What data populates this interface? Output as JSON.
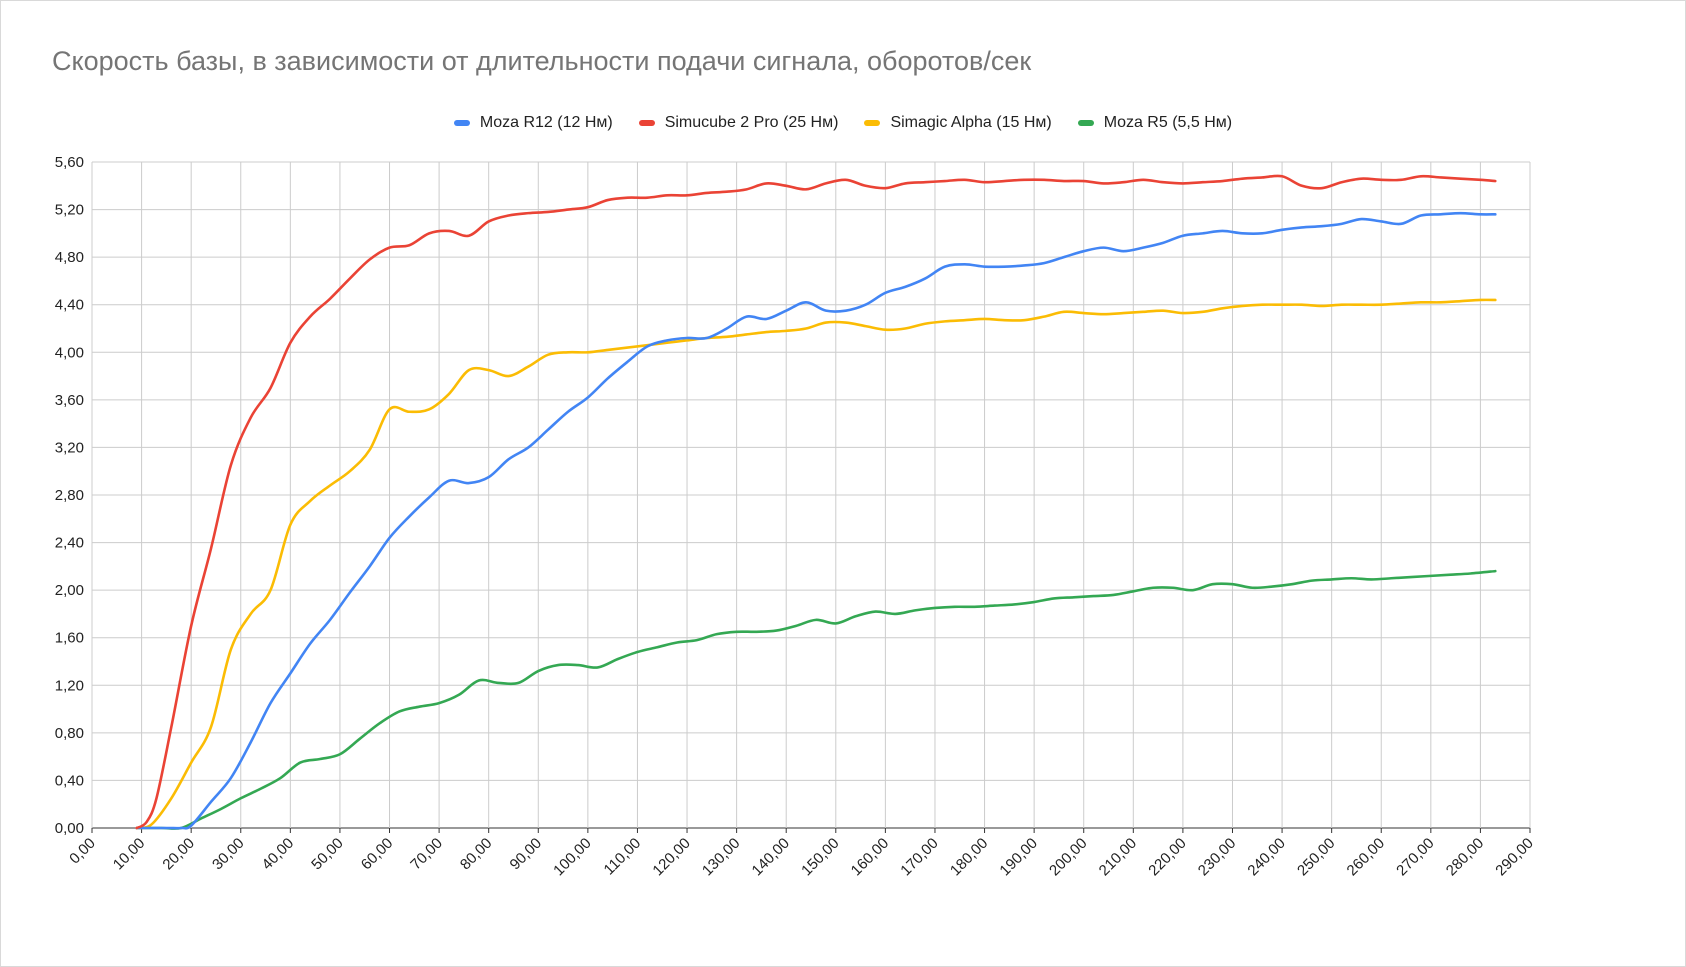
{
  "chart_data": {
    "type": "line",
    "title": "Скорость базы, в зависимости от длительности подачи сигнала, оборотов/сек",
    "xlabel": "",
    "ylabel": "",
    "xlim": [
      0,
      290
    ],
    "ylim": [
      0,
      5.6
    ],
    "x_ticks": [
      0,
      10,
      20,
      30,
      40,
      50,
      60,
      70,
      80,
      90,
      100,
      110,
      120,
      130,
      140,
      150,
      160,
      170,
      180,
      190,
      200,
      210,
      220,
      230,
      240,
      250,
      260,
      270,
      280,
      290
    ],
    "x_tick_labels": [
      "0,00",
      "10,00",
      "20,00",
      "30,00",
      "40,00",
      "50,00",
      "60,00",
      "70,00",
      "80,00",
      "90,00",
      "100,00",
      "110,00",
      "120,00",
      "130,00",
      "140,00",
      "150,00",
      "160,00",
      "170,00",
      "180,00",
      "190,00",
      "200,00",
      "210,00",
      "220,00",
      "230,00",
      "240,00",
      "250,00",
      "260,00",
      "270,00",
      "280,00",
      "290,00"
    ],
    "y_ticks": [
      0,
      0.4,
      0.8,
      1.2,
      1.6,
      2.0,
      2.4,
      2.8,
      3.2,
      3.6,
      4.0,
      4.4,
      4.8,
      5.2,
      5.6
    ],
    "y_tick_labels": [
      "0,00",
      "0,40",
      "0,80",
      "1,20",
      "1,60",
      "2,00",
      "2,40",
      "2,80",
      "3,20",
      "3,60",
      "4,00",
      "4,40",
      "4,80",
      "5,20",
      "5,60"
    ],
    "grid": true,
    "legend_position": "top",
    "series": [
      {
        "name": "Moza R12 (12 Нм)",
        "color": "#4285f4",
        "x": [
          9,
          15,
          18,
          20,
          24,
          28,
          32,
          36,
          40,
          44,
          48,
          52,
          56,
          60,
          64,
          68,
          72,
          76,
          80,
          84,
          88,
          92,
          96,
          100,
          104,
          108,
          112,
          116,
          120,
          124,
          128,
          132,
          136,
          140,
          144,
          148,
          152,
          156,
          160,
          164,
          168,
          172,
          176,
          180,
          184,
          188,
          192,
          196,
          200,
          204,
          208,
          212,
          216,
          220,
          224,
          228,
          232,
          236,
          240,
          244,
          248,
          252,
          256,
          260,
          264,
          268,
          272,
          276,
          280,
          283
        ],
        "values": [
          0,
          0,
          0,
          0.02,
          0.22,
          0.42,
          0.72,
          1.05,
          1.3,
          1.55,
          1.75,
          1.98,
          2.2,
          2.44,
          2.62,
          2.78,
          2.92,
          2.9,
          2.95,
          3.1,
          3.2,
          3.35,
          3.5,
          3.62,
          3.78,
          3.92,
          4.05,
          4.1,
          4.12,
          4.12,
          4.2,
          4.3,
          4.28,
          4.35,
          4.42,
          4.35,
          4.35,
          4.4,
          4.5,
          4.55,
          4.62,
          4.72,
          4.74,
          4.72,
          4.72,
          4.73,
          4.75,
          4.8,
          4.85,
          4.88,
          4.85,
          4.88,
          4.92,
          4.98,
          5.0,
          5.02,
          5.0,
          5.0,
          5.03,
          5.05,
          5.06,
          5.08,
          5.12,
          5.1,
          5.08,
          5.15,
          5.16,
          5.17,
          5.16,
          5.16
        ]
      },
      {
        "name": "Simucube 2 Pro (25 Нм)",
        "color": "#ea4335",
        "x": [
          9,
          11,
          13,
          16,
          20,
          24,
          28,
          32,
          36,
          40,
          44,
          48,
          52,
          56,
          60,
          64,
          68,
          72,
          76,
          80,
          84,
          88,
          92,
          96,
          100,
          104,
          108,
          112,
          116,
          120,
          124,
          128,
          132,
          136,
          140,
          144,
          148,
          152,
          156,
          160,
          164,
          168,
          172,
          176,
          180,
          184,
          188,
          192,
          196,
          200,
          204,
          208,
          212,
          216,
          220,
          224,
          228,
          232,
          236,
          240,
          244,
          248,
          252,
          256,
          260,
          264,
          268,
          272,
          276,
          280,
          283
        ],
        "values": [
          0,
          0.05,
          0.25,
          0.85,
          1.7,
          2.35,
          3.05,
          3.45,
          3.7,
          4.08,
          4.3,
          4.45,
          4.62,
          4.78,
          4.88,
          4.9,
          5.0,
          5.02,
          4.98,
          5.1,
          5.15,
          5.17,
          5.18,
          5.2,
          5.22,
          5.28,
          5.3,
          5.3,
          5.32,
          5.32,
          5.34,
          5.35,
          5.37,
          5.42,
          5.4,
          5.37,
          5.42,
          5.45,
          5.4,
          5.38,
          5.42,
          5.43,
          5.44,
          5.45,
          5.43,
          5.44,
          5.45,
          5.45,
          5.44,
          5.44,
          5.42,
          5.43,
          5.45,
          5.43,
          5.42,
          5.43,
          5.44,
          5.46,
          5.47,
          5.48,
          5.4,
          5.38,
          5.43,
          5.46,
          5.45,
          5.45,
          5.48,
          5.47,
          5.46,
          5.45,
          5.44
        ]
      },
      {
        "name": "Simagic Alpha (15 Нм)",
        "color": "#fbbc04",
        "x": [
          9,
          12,
          16,
          20,
          24,
          28,
          32,
          36,
          40,
          44,
          48,
          52,
          56,
          60,
          64,
          68,
          72,
          76,
          80,
          84,
          88,
          92,
          96,
          100,
          104,
          108,
          112,
          116,
          120,
          124,
          128,
          132,
          136,
          140,
          144,
          148,
          152,
          156,
          160,
          164,
          168,
          172,
          176,
          180,
          184,
          188,
          192,
          196,
          200,
          204,
          208,
          212,
          216,
          220,
          224,
          228,
          232,
          236,
          240,
          244,
          248,
          252,
          256,
          260,
          264,
          268,
          272,
          276,
          280,
          283
        ],
        "values": [
          0,
          0.03,
          0.25,
          0.55,
          0.85,
          1.5,
          1.8,
          2.0,
          2.55,
          2.75,
          2.88,
          3.0,
          3.18,
          3.52,
          3.5,
          3.52,
          3.65,
          3.85,
          3.85,
          3.8,
          3.88,
          3.98,
          4.0,
          4.0,
          4.02,
          4.04,
          4.06,
          4.08,
          4.1,
          4.12,
          4.13,
          4.15,
          4.17,
          4.18,
          4.2,
          4.25,
          4.25,
          4.22,
          4.19,
          4.2,
          4.24,
          4.26,
          4.27,
          4.28,
          4.27,
          4.27,
          4.3,
          4.34,
          4.33,
          4.32,
          4.33,
          4.34,
          4.35,
          4.33,
          4.34,
          4.37,
          4.39,
          4.4,
          4.4,
          4.4,
          4.39,
          4.4,
          4.4,
          4.4,
          4.41,
          4.42,
          4.42,
          4.43,
          4.44,
          4.44
        ]
      },
      {
        "name": "Moza R5 (5,5 Нм)",
        "color": "#34a853",
        "x": [
          9,
          14,
          18,
          22,
          26,
          30,
          34,
          38,
          42,
          46,
          50,
          54,
          58,
          62,
          66,
          70,
          74,
          78,
          82,
          86,
          90,
          94,
          98,
          102,
          106,
          110,
          114,
          118,
          122,
          126,
          130,
          134,
          138,
          142,
          146,
          150,
          154,
          158,
          162,
          166,
          170,
          174,
          178,
          182,
          186,
          190,
          194,
          198,
          202,
          206,
          210,
          214,
          218,
          222,
          226,
          230,
          234,
          238,
          242,
          246,
          250,
          254,
          258,
          262,
          266,
          270,
          274,
          278,
          283
        ],
        "values": [
          0,
          0,
          0,
          0.08,
          0.16,
          0.25,
          0.33,
          0.42,
          0.55,
          0.58,
          0.62,
          0.75,
          0.88,
          0.98,
          1.02,
          1.05,
          1.12,
          1.24,
          1.22,
          1.22,
          1.32,
          1.37,
          1.37,
          1.35,
          1.42,
          1.48,
          1.52,
          1.56,
          1.58,
          1.63,
          1.65,
          1.65,
          1.66,
          1.7,
          1.75,
          1.72,
          1.78,
          1.82,
          1.8,
          1.83,
          1.85,
          1.86,
          1.86,
          1.87,
          1.88,
          1.9,
          1.93,
          1.94,
          1.95,
          1.96,
          1.99,
          2.02,
          2.02,
          2.0,
          2.05,
          2.05,
          2.02,
          2.03,
          2.05,
          2.08,
          2.09,
          2.1,
          2.09,
          2.1,
          2.11,
          2.12,
          2.13,
          2.14,
          2.16
        ]
      }
    ]
  }
}
